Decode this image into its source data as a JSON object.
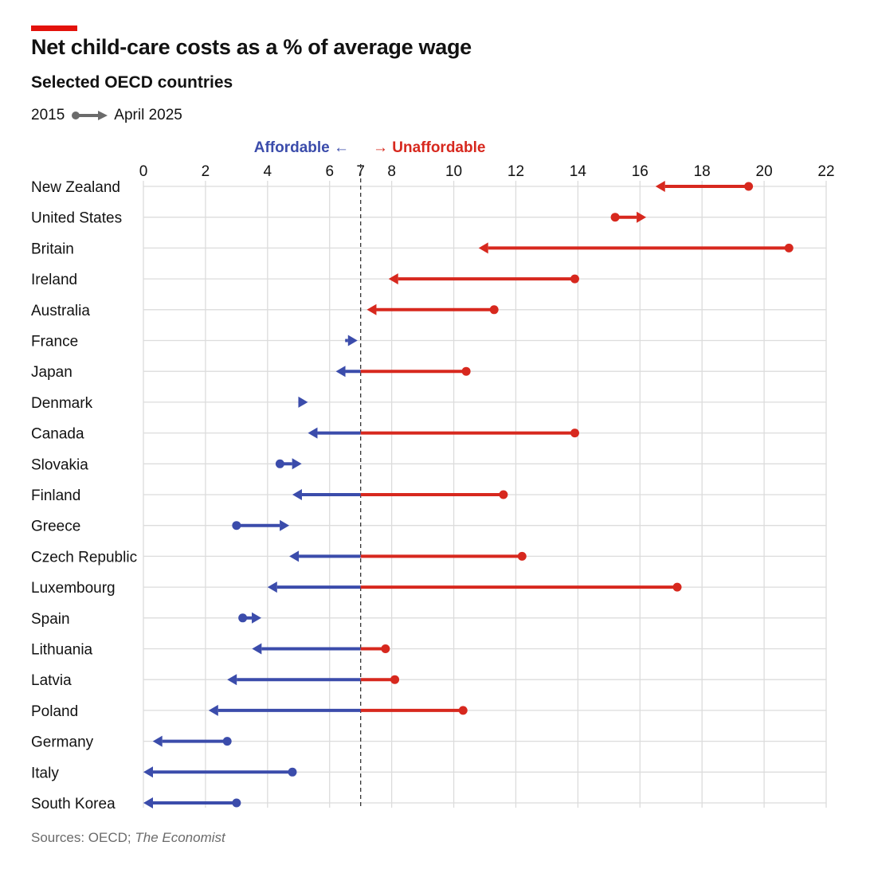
{
  "header": {
    "title": "Net child-care costs as a % of average wage",
    "subtitle": "Selected OECD countries"
  },
  "legend": {
    "start_label": "2015",
    "end_label": "April 2025"
  },
  "footer": {
    "source_prefix": "Sources: OECD; ",
    "source_italic": "The Economist"
  },
  "colors": {
    "affordable": "#3b4cab",
    "unaffordable": "#d7281e",
    "grid": "#dcdcdc",
    "legend_gray": "#6b6b6b",
    "accent": "#e3120b"
  },
  "chart_data": {
    "type": "dumbbell-arrow",
    "title": "Net child-care costs as a % of average wage",
    "subtitle": "Selected OECD countries",
    "xlim": [
      0,
      22
    ],
    "threshold": 7,
    "ticks": [
      0,
      2,
      4,
      6,
      7,
      8,
      10,
      12,
      14,
      16,
      18,
      20,
      22
    ],
    "annotations": {
      "left": "Affordable ←",
      "right": "→ Unaffordable"
    },
    "grid": true,
    "series": [
      {
        "country": "New Zealand",
        "from": 19.5,
        "to": 16.5
      },
      {
        "country": "United States",
        "from": 15.2,
        "to": 16.2
      },
      {
        "country": "Britain",
        "from": 20.8,
        "to": 10.8
      },
      {
        "country": "Ireland",
        "from": 13.9,
        "to": 7.9
      },
      {
        "country": "Australia",
        "from": 11.3,
        "to": 7.2
      },
      {
        "country": "France",
        "from": 6.5,
        "to": 6.9
      },
      {
        "country": "Japan",
        "from": 10.4,
        "to": 6.2
      },
      {
        "country": "Denmark",
        "from": 5.2,
        "to": 5.3
      },
      {
        "country": "Canada",
        "from": 13.9,
        "to": 5.3
      },
      {
        "country": "Slovakia",
        "from": 4.4,
        "to": 5.1
      },
      {
        "country": "Finland",
        "from": 11.6,
        "to": 4.8
      },
      {
        "country": "Greece",
        "from": 3.0,
        "to": 4.7
      },
      {
        "country": "Czech Republic",
        "from": 12.2,
        "to": 4.7
      },
      {
        "country": "Luxembourg",
        "from": 17.2,
        "to": 4.0
      },
      {
        "country": "Spain",
        "from": 3.2,
        "to": 3.8
      },
      {
        "country": "Lithuania",
        "from": 7.8,
        "to": 3.5
      },
      {
        "country": "Latvia",
        "from": 8.1,
        "to": 2.7
      },
      {
        "country": "Poland",
        "from": 10.3,
        "to": 2.1
      },
      {
        "country": "Germany",
        "from": 2.7,
        "to": 0.3
      },
      {
        "country": "Italy",
        "from": 4.8,
        "to": 0.0
      },
      {
        "country": "South Korea",
        "from": 3.0,
        "to": 0.0
      }
    ]
  }
}
